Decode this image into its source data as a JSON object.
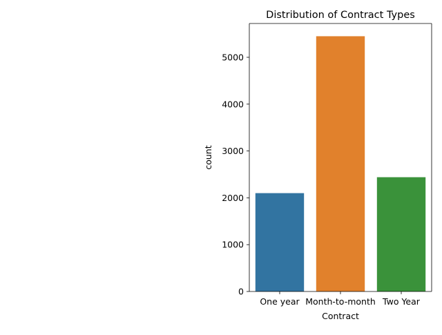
{
  "chart_data": {
    "type": "bar",
    "title": "Distribution of Contract Types",
    "xlabel": "Contract",
    "ylabel": "count",
    "categories": [
      "One year",
      "Month-to-month",
      "Two Year"
    ],
    "values": [
      2100,
      5450,
      2440
    ],
    "colors": [
      "#3274a1",
      "#e1812c",
      "#3a923a"
    ],
    "ylim": [
      0,
      5722
    ],
    "yticks": [
      0,
      1000,
      2000,
      3000,
      4000,
      5000
    ],
    "grid": false,
    "legend": "none"
  }
}
